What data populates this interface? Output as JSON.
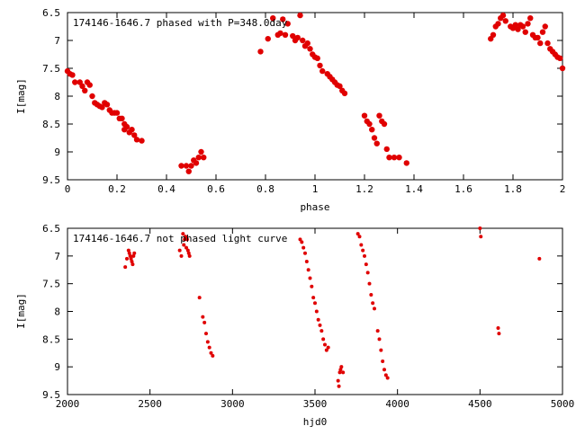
{
  "colors": {
    "points": "#e00000",
    "axes": "#000000",
    "background": "#ffffff"
  },
  "chart_data": [
    {
      "type": "scatter",
      "title": "174146-1646.7 phased with P=348.0day",
      "xlabel": "phase",
      "ylabel": "I[mag]",
      "xlim": [
        0,
        2
      ],
      "ylim": [
        6.5,
        9.5
      ],
      "y_inverted": true,
      "grid": false,
      "xticks": [
        0,
        0.2,
        0.4,
        0.6,
        0.8,
        1,
        1.2,
        1.4,
        1.6,
        1.8,
        2
      ],
      "xtick_labels": [
        "0",
        "0.2",
        "0.4",
        "0.6",
        "0.8",
        "1",
        "1.2",
        "1.4",
        "1.6",
        "1.8",
        "2"
      ],
      "yticks": [
        6.5,
        7,
        7.5,
        8,
        8.5,
        9,
        9.5
      ],
      "ytick_labels": [
        "6.5",
        "7",
        "7.5",
        "8",
        "8.5",
        "9",
        "9.5"
      ],
      "marker_size": 3.2,
      "x": [
        0.0,
        0.01,
        0.02,
        0.03,
        0.05,
        0.06,
        0.07,
        0.08,
        0.09,
        0.1,
        0.11,
        0.12,
        0.13,
        0.14,
        0.15,
        0.16,
        0.17,
        0.18,
        0.19,
        0.2,
        0.21,
        0.22,
        0.23,
        0.23,
        0.24,
        0.25,
        0.26,
        0.27,
        0.28,
        0.3,
        0.46,
        0.48,
        0.49,
        0.5,
        0.51,
        0.52,
        0.53,
        0.54,
        0.55,
        0.78,
        0.81,
        0.83,
        0.85,
        0.86,
        0.87,
        0.88,
        0.89,
        0.91,
        0.92,
        0.93,
        0.94,
        0.95,
        0.96,
        0.97,
        0.98,
        0.99,
        1.0,
        1.01,
        1.02,
        1.03,
        1.05,
        1.06,
        1.07,
        1.08,
        1.09,
        1.1,
        1.11,
        1.12,
        1.2,
        1.21,
        1.22,
        1.23,
        1.24,
        1.25,
        1.26,
        1.27,
        1.28,
        1.29,
        1.3,
        1.32,
        1.34,
        1.37,
        1.71,
        1.72,
        1.73,
        1.74,
        1.75,
        1.76,
        1.77,
        1.79,
        1.8,
        1.81,
        1.82,
        1.83,
        1.84,
        1.85,
        1.86,
        1.87,
        1.88,
        1.89,
        1.9,
        1.91,
        1.92,
        1.93,
        1.94,
        1.95,
        1.96,
        1.97,
        1.98,
        1.99,
        2.0
      ],
      "y": [
        7.55,
        7.6,
        7.62,
        7.75,
        7.75,
        7.82,
        7.9,
        7.75,
        7.8,
        8.0,
        8.12,
        8.15,
        8.18,
        8.2,
        8.12,
        8.15,
        8.25,
        8.3,
        8.3,
        8.3,
        8.4,
        8.4,
        8.5,
        8.6,
        8.55,
        8.65,
        8.6,
        8.7,
        8.78,
        8.8,
        9.25,
        9.25,
        9.35,
        9.25,
        9.15,
        9.2,
        9.1,
        9.0,
        9.1,
        7.2,
        6.97,
        6.6,
        6.9,
        6.87,
        6.62,
        6.9,
        6.7,
        6.92,
        7.0,
        6.95,
        6.55,
        7.0,
        7.1,
        7.05,
        7.15,
        7.25,
        7.3,
        7.32,
        7.45,
        7.55,
        7.6,
        7.65,
        7.7,
        7.75,
        7.8,
        7.82,
        7.9,
        7.95,
        8.35,
        8.45,
        8.5,
        8.6,
        8.75,
        8.85,
        8.35,
        8.45,
        8.5,
        8.95,
        9.1,
        9.1,
        9.1,
        9.2,
        6.97,
        6.9,
        6.75,
        6.7,
        6.6,
        6.55,
        6.65,
        6.75,
        6.78,
        6.72,
        6.8,
        6.72,
        6.75,
        6.85,
        6.7,
        6.6,
        6.9,
        6.95,
        6.95,
        7.05,
        6.85,
        6.75,
        7.05,
        7.15,
        7.2,
        7.25,
        7.3,
        7.32,
        7.5
      ],
      "annotation": "174146-1646.7 phased with P=348.0day"
    },
    {
      "type": "scatter",
      "title": "174146-1646.7 not phased light curve",
      "xlabel": "hjd0",
      "ylabel": "I[mag]",
      "xlim": [
        2000,
        5000
      ],
      "ylim": [
        6.5,
        9.5
      ],
      "y_inverted": true,
      "grid": false,
      "xticks": [
        2000,
        2500,
        3000,
        3500,
        4000,
        4500,
        5000
      ],
      "xtick_labels": [
        "2000",
        "2500",
        "3000",
        "3500",
        "4000",
        "4500",
        "5000"
      ],
      "yticks": [
        6.5,
        7,
        7.5,
        8,
        8.5,
        9,
        9.5
      ],
      "ytick_labels": [
        "6.5",
        "7",
        "7.5",
        "8",
        "8.5",
        "9",
        "9.5"
      ],
      "marker_size": 2.0,
      "x": [
        2350,
        2360,
        2370,
        2375,
        2380,
        2385,
        2390,
        2395,
        2400,
        2405,
        2680,
        2690,
        2700,
        2705,
        2710,
        2715,
        2720,
        2725,
        2730,
        2735,
        2740,
        2800,
        2820,
        2830,
        2840,
        2850,
        2860,
        2870,
        2880,
        3410,
        3420,
        3430,
        3440,
        3450,
        3460,
        3470,
        3480,
        3490,
        3500,
        3510,
        3520,
        3530,
        3540,
        3550,
        3560,
        3570,
        3580,
        3640,
        3645,
        3650,
        3655,
        3660,
        3670,
        3760,
        3770,
        3780,
        3790,
        3800,
        3810,
        3820,
        3830,
        3840,
        3850,
        3860,
        3880,
        3890,
        3900,
        3910,
        3920,
        3930,
        3940,
        4500,
        4505,
        4610,
        4615,
        4860
      ],
      "y": [
        7.2,
        7.05,
        6.9,
        6.95,
        7.0,
        7.05,
        7.1,
        7.15,
        7.0,
        6.95,
        6.9,
        7.0,
        6.6,
        6.8,
        6.7,
        6.65,
        6.85,
        6.7,
        6.9,
        6.95,
        7.0,
        7.75,
        8.1,
        8.2,
        8.4,
        8.55,
        8.65,
        8.75,
        8.8,
        6.7,
        6.75,
        6.85,
        6.95,
        7.1,
        7.25,
        7.4,
        7.55,
        7.75,
        7.85,
        8.0,
        8.15,
        8.25,
        8.35,
        8.5,
        8.6,
        8.7,
        8.65,
        9.25,
        9.35,
        9.1,
        9.05,
        9.0,
        9.1,
        6.6,
        6.65,
        6.8,
        6.9,
        7.0,
        7.15,
        7.3,
        7.5,
        7.7,
        7.85,
        7.95,
        8.35,
        8.5,
        8.7,
        8.9,
        9.05,
        9.15,
        9.2,
        6.5,
        6.65,
        8.3,
        8.4,
        7.05
      ],
      "annotation": "174146-1646.7 not phased light curve"
    }
  ]
}
